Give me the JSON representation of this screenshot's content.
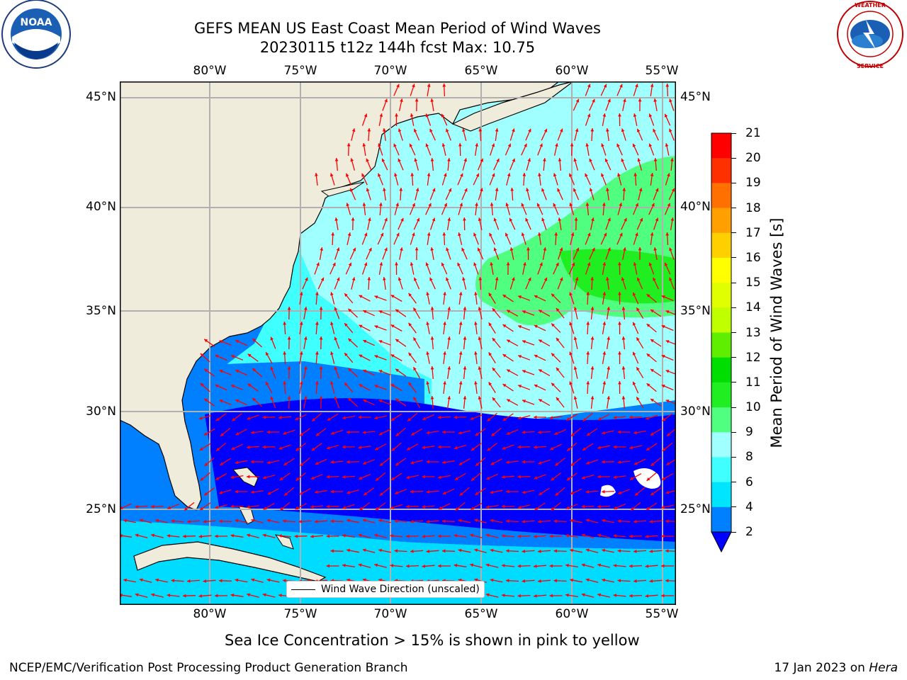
{
  "header": {
    "title_line1": "GEFS MEAN US East Coast Mean Period of Wind Waves",
    "title_line2": "20230115 t12z 144h fcst   Max: 10.75"
  },
  "logos": {
    "left": "NOAA",
    "right": "NATIONAL WEATHER SERVICE"
  },
  "map": {
    "lon_labels": [
      "80°W",
      "75°W",
      "70°W",
      "65°W",
      "60°W",
      "55°W"
    ],
    "lat_labels": [
      "45°N",
      "40°N",
      "35°N",
      "30°N",
      "25°N"
    ],
    "legend_label": "Wind Wave Direction (unscaled)",
    "arrow_color": "#ff0000",
    "land_color": "#efecdc"
  },
  "colorbar": {
    "label": "Mean Period of Wind Waves [s]",
    "ticks": [
      "2",
      "4",
      "6",
      "8",
      "9",
      "10",
      "11",
      "12",
      "13",
      "14",
      "15",
      "16",
      "17",
      "18",
      "19",
      "20",
      "21"
    ],
    "colors": [
      "#0000ff",
      "#0080ff",
      "#00e5ff",
      "#40ffff",
      "#a0ffff",
      "#50ff80",
      "#20ee20",
      "#00dd00",
      "#60ee00",
      "#c0ff00",
      "#e0ff00",
      "#ffff00",
      "#ffd000",
      "#ffa000",
      "#ff7000",
      "#ff3000",
      "#ff0000"
    ]
  },
  "footer": {
    "sea_ice_note": "Sea Ice Concentration > 15% is shown in pink to yellow",
    "left": "NCEP/EMC/Verification Post Processing Product Generation Branch",
    "right_prefix": "17 Jan 2023 on",
    "right_machine": "Hera"
  }
}
